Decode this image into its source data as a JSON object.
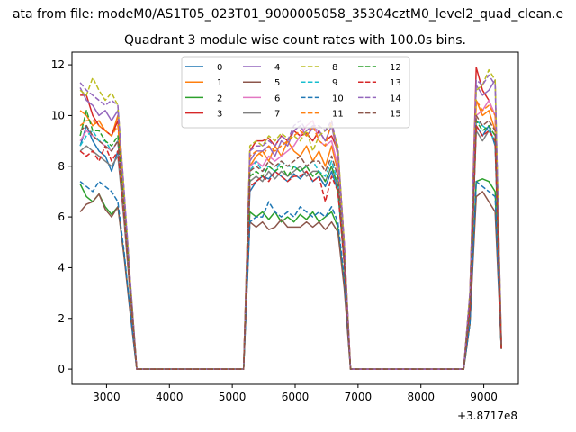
{
  "chart_data": {
    "type": "line",
    "suptitle": "ata from file: modeM0/AS1T05_023T01_9000005058_35304cztM0_level2_quad_clean.e",
    "title": "Quadrant 3 module wise count rates with 100.0s bins.",
    "xlabel": "",
    "ylabel": "",
    "x_offset_label": "+3.8717e8",
    "xlim": [
      2450,
      9550
    ],
    "ylim": [
      -0.6,
      12.5
    ],
    "xticks": [
      3000,
      4000,
      5000,
      6000,
      7000,
      8000,
      9000
    ],
    "xtick_labels": [
      "3000",
      "4000",
      "5000",
      "6000",
      "7000",
      "8000",
      "9000"
    ],
    "yticks": [
      0,
      2,
      4,
      6,
      8,
      10,
      12
    ],
    "ytick_labels": [
      "0",
      "2",
      "4",
      "6",
      "8",
      "10",
      "12"
    ],
    "legend_placement": "upper center",
    "legend_columns": 4,
    "x": [
      2580,
      2680,
      2780,
      2880,
      2980,
      3080,
      3180,
      3280,
      3380,
      3480,
      3580,
      3680,
      3780,
      3880,
      3980,
      4080,
      4180,
      4280,
      4380,
      4480,
      4580,
      4680,
      4780,
      4880,
      4980,
      5080,
      5180,
      5280,
      5380,
      5480,
      5580,
      5680,
      5780,
      5880,
      5980,
      6080,
      6180,
      6280,
      6380,
      6480,
      6580,
      6680,
      6780,
      6880,
      6980,
      7080,
      7180,
      7280,
      7380,
      7480,
      7580,
      7680,
      7780,
      7880,
      7980,
      8080,
      8180,
      8280,
      8380,
      8480,
      8580,
      8680,
      8780,
      8880,
      8980,
      9080,
      9180,
      9280
    ],
    "gaps": [
      {
        "from": 3480,
        "to": 5180,
        "value": 0
      },
      {
        "from": 6880,
        "to": 8680,
        "value": 0
      }
    ],
    "segments": [
      {
        "name": "seg1",
        "x": [
          2580,
          2680,
          2780,
          2880,
          2980,
          3080,
          3180,
          3280,
          3380,
          3480
        ]
      },
      {
        "name": "seg2",
        "x": [
          5180,
          5280,
          5380,
          5480,
          5580,
          5680,
          5780,
          5880,
          5980,
          6080,
          6180,
          6280,
          6380,
          6480,
          6580,
          6680,
          6780,
          6880
        ]
      },
      {
        "name": "seg3",
        "x": [
          8680,
          8780,
          8880,
          8980,
          9080,
          9180,
          9280
        ]
      }
    ],
    "series": [
      {
        "name": "0",
        "color": "#1f77b4",
        "dash": false,
        "seg1": [
          8.8,
          9.6,
          9.0,
          8.6,
          8.4,
          7.8,
          8.6,
          6.0,
          3.0,
          0
        ],
        "seg2": [
          0,
          7.0,
          7.4,
          7.6,
          7.5,
          7.8,
          7.6,
          7.4,
          7.7,
          7.5,
          7.8,
          7.4,
          7.6,
          7.2,
          7.8,
          7.0,
          4.2,
          0
        ],
        "seg3": [
          0,
          2.4,
          9.6,
          9.2,
          9.6,
          8.8,
          0.8
        ]
      },
      {
        "name": "1",
        "color": "#ff7f0e",
        "dash": false,
        "seg1": [
          10.2,
          10.0,
          9.6,
          9.8,
          9.4,
          9.2,
          10.0,
          6.5,
          3.2,
          0
        ],
        "seg2": [
          0,
          8.0,
          8.4,
          8.6,
          8.2,
          8.8,
          8.4,
          9.0,
          8.6,
          8.4,
          8.8,
          8.2,
          8.6,
          8.0,
          8.8,
          7.8,
          4.6,
          0
        ],
        "seg3": [
          0,
          2.7,
          10.6,
          10.0,
          10.2,
          9.4,
          0.9
        ]
      },
      {
        "name": "2",
        "color": "#2ca02c",
        "dash": false,
        "seg1": [
          7.3,
          6.8,
          6.6,
          6.9,
          6.4,
          6.1,
          6.4,
          4.5,
          2.2,
          0
        ],
        "seg2": [
          0,
          6.2,
          6.0,
          6.2,
          5.9,
          6.2,
          5.8,
          6.0,
          5.8,
          6.1,
          5.9,
          6.2,
          5.8,
          6.0,
          6.2,
          5.6,
          3.4,
          0
        ],
        "seg3": [
          0,
          1.8,
          7.4,
          7.5,
          7.4,
          7.0,
          0.8
        ]
      },
      {
        "name": "3",
        "color": "#d62728",
        "dash": false,
        "seg1": [
          10.8,
          10.8,
          10.0,
          9.6,
          9.4,
          9.2,
          9.8,
          6.6,
          3.3,
          0
        ],
        "seg2": [
          0,
          8.6,
          9.0,
          9.0,
          9.1,
          8.8,
          9.2,
          9.0,
          9.4,
          9.2,
          9.3,
          9.0,
          9.4,
          9.0,
          9.2,
          8.6,
          5.0,
          0
        ],
        "seg3": [
          0,
          3.0,
          11.9,
          11.0,
          10.6,
          10.0,
          1.0
        ]
      },
      {
        "name": "4",
        "color": "#9467bd",
        "dash": false,
        "seg1": [
          11.1,
          10.6,
          10.4,
          10.0,
          10.2,
          9.8,
          10.2,
          6.8,
          3.3,
          0
        ],
        "seg2": [
          0,
          8.2,
          8.6,
          8.6,
          8.8,
          8.4,
          9.0,
          8.8,
          9.4,
          9.6,
          9.2,
          9.5,
          9.4,
          9.0,
          9.6,
          8.4,
          4.8,
          0
        ],
        "seg3": [
          0,
          3.0,
          11.2,
          10.8,
          11.0,
          11.4,
          1.0
        ]
      },
      {
        "name": "5",
        "color": "#8c564b",
        "dash": false,
        "seg1": [
          6.2,
          6.5,
          6.6,
          6.9,
          6.3,
          6.0,
          6.4,
          4.4,
          2.1,
          0
        ],
        "seg2": [
          0,
          5.8,
          5.6,
          5.8,
          5.5,
          5.6,
          5.9,
          5.6,
          5.6,
          5.6,
          5.8,
          5.6,
          5.8,
          5.5,
          5.8,
          5.4,
          3.2,
          0
        ],
        "seg3": [
          0,
          1.8,
          6.8,
          7.0,
          6.6,
          6.2,
          0.8
        ]
      },
      {
        "name": "6",
        "color": "#e377c2",
        "dash": false,
        "seg1": [
          9.0,
          9.4,
          9.2,
          9.0,
          8.8,
          8.6,
          9.0,
          6.2,
          3.0,
          0
        ],
        "seg2": [
          0,
          8.0,
          8.2,
          8.0,
          8.4,
          8.2,
          8.4,
          8.6,
          8.8,
          9.2,
          9.6,
          9.8,
          9.0,
          8.8,
          9.0,
          8.0,
          4.6,
          0
        ],
        "seg3": [
          0,
          2.8,
          10.0,
          10.2,
          10.6,
          10.0,
          0.9
        ]
      },
      {
        "name": "7",
        "color": "#7f7f7f",
        "dash": false,
        "seg1": [
          8.6,
          8.8,
          8.6,
          8.4,
          8.2,
          8.0,
          8.4,
          5.8,
          2.8,
          0
        ],
        "seg2": [
          0,
          7.4,
          7.6,
          7.4,
          7.8,
          7.5,
          7.8,
          7.6,
          7.8,
          8.0,
          7.6,
          7.8,
          7.8,
          7.4,
          8.0,
          7.2,
          4.2,
          0
        ],
        "seg3": [
          0,
          2.6,
          9.4,
          9.0,
          9.4,
          9.0,
          0.9
        ]
      },
      {
        "name": "8",
        "color": "#bcbd22",
        "dash": true,
        "seg1": [
          11.0,
          10.8,
          11.5,
          11.0,
          10.6,
          10.9,
          10.4,
          7.0,
          3.4,
          0
        ],
        "seg2": [
          0,
          8.8,
          9.0,
          8.8,
          9.2,
          9.0,
          9.3,
          9.1,
          9.2,
          9.0,
          9.4,
          8.6,
          9.2,
          9.4,
          9.6,
          8.8,
          5.0,
          0
        ],
        "seg3": [
          0,
          3.0,
          11.0,
          11.2,
          11.8,
          11.4,
          1.0
        ]
      },
      {
        "name": "9",
        "color": "#17becf",
        "dash": true,
        "seg1": [
          8.8,
          9.2,
          9.4,
          9.0,
          9.0,
          8.6,
          9.0,
          6.2,
          3.0,
          0
        ],
        "seg2": [
          0,
          7.8,
          8.2,
          7.8,
          8.0,
          7.8,
          8.2,
          8.0,
          8.0,
          7.8,
          8.0,
          8.2,
          7.8,
          7.6,
          8.2,
          7.4,
          4.4,
          0
        ],
        "seg3": [
          0,
          2.6,
          9.8,
          9.6,
          9.4,
          9.0,
          0.9
        ]
      },
      {
        "name": "10",
        "color": "#1f77b4",
        "dash": true,
        "seg1": [
          7.4,
          7.2,
          7.0,
          7.4,
          7.2,
          7.0,
          6.6,
          4.6,
          2.2,
          0
        ],
        "seg2": [
          0,
          5.8,
          6.0,
          6.0,
          6.6,
          6.2,
          6.0,
          6.2,
          6.0,
          6.4,
          6.2,
          6.0,
          6.2,
          6.0,
          6.4,
          5.8,
          3.6,
          0
        ],
        "seg3": [
          0,
          1.8,
          7.4,
          7.2,
          7.0,
          6.8,
          0.8
        ]
      },
      {
        "name": "11",
        "color": "#ff7f0e",
        "dash": true,
        "seg1": [
          9.6,
          9.8,
          9.8,
          9.6,
          9.4,
          9.2,
          9.6,
          6.6,
          3.2,
          0
        ],
        "seg2": [
          0,
          8.4,
          8.6,
          8.4,
          8.8,
          8.6,
          8.8,
          9.0,
          9.2,
          9.4,
          9.2,
          9.6,
          9.0,
          8.8,
          9.8,
          8.4,
          4.8,
          0
        ],
        "seg3": [
          0,
          2.8,
          10.6,
          10.2,
          10.4,
          10.0,
          0.9
        ]
      },
      {
        "name": "12",
        "color": "#2ca02c",
        "dash": true,
        "seg1": [
          9.2,
          10.2,
          9.4,
          9.4,
          9.0,
          8.8,
          9.2,
          6.4,
          3.1,
          0
        ],
        "seg2": [
          0,
          7.6,
          7.8,
          7.6,
          8.0,
          7.8,
          8.0,
          7.6,
          8.0,
          7.8,
          8.0,
          7.6,
          7.8,
          7.4,
          8.0,
          7.2,
          4.4,
          0
        ],
        "seg3": [
          0,
          2.6,
          9.8,
          9.4,
          9.6,
          9.2,
          0.9
        ]
      },
      {
        "name": "13",
        "color": "#d62728",
        "dash": true,
        "seg1": [
          8.6,
          8.4,
          8.6,
          8.2,
          8.8,
          8.2,
          8.6,
          6.0,
          2.9,
          0
        ],
        "seg2": [
          0,
          7.2,
          7.4,
          7.6,
          7.4,
          7.8,
          7.6,
          7.4,
          7.6,
          7.6,
          7.8,
          7.4,
          7.6,
          6.6,
          7.6,
          7.0,
          4.2,
          0
        ],
        "seg3": [
          0,
          2.4,
          9.6,
          9.2,
          9.4,
          9.0,
          0.8
        ]
      },
      {
        "name": "14",
        "color": "#9467bd",
        "dash": true,
        "seg1": [
          11.3,
          11.0,
          10.8,
          10.6,
          10.4,
          10.6,
          10.4,
          7.0,
          3.4,
          0
        ],
        "seg2": [
          0,
          8.6,
          8.8,
          8.8,
          9.0,
          8.8,
          9.2,
          9.0,
          9.6,
          9.8,
          9.4,
          9.6,
          9.6,
          9.4,
          9.8,
          8.6,
          5.0,
          0
        ],
        "seg3": [
          0,
          3.0,
          11.4,
          11.2,
          11.6,
          11.2,
          1.0
        ]
      },
      {
        "name": "15",
        "color": "#8c564b",
        "dash": true,
        "seg1": [
          9.4,
          9.6,
          9.2,
          9.0,
          8.8,
          8.6,
          9.0,
          6.2,
          3.0,
          0
        ],
        "seg2": [
          0,
          7.8,
          8.0,
          7.8,
          8.2,
          8.0,
          8.2,
          8.0,
          8.2,
          8.4,
          8.0,
          8.2,
          8.2,
          7.8,
          8.4,
          7.6,
          4.4,
          0
        ],
        "seg3": [
          0,
          2.6,
          10.0,
          9.6,
          9.8,
          9.4,
          0.9
        ]
      }
    ]
  }
}
